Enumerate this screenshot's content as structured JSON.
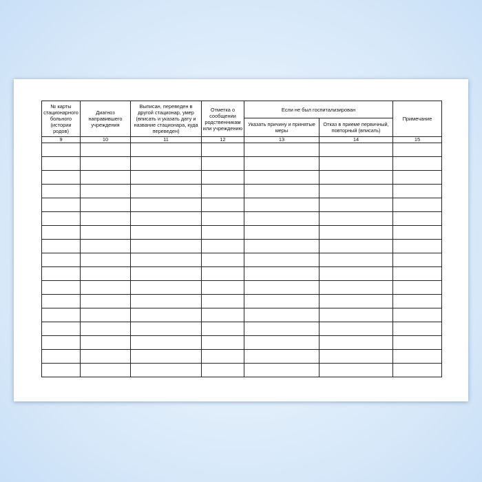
{
  "table": {
    "headers": {
      "col9": "№ карты стационарного больного (истории родов)",
      "col10": "Диагноз направившего учреждения",
      "col11": "Выписан, переведен в другой стационар, умер (вписать и указать дату и название стационара, куда переведен)",
      "col12": "Отметка о сообщении родственникам или учреждению",
      "group": "Если не был госпитализирован",
      "col13": "Указать причину и принятые меры",
      "col14": "Отказ в приеме первичный, повторный (вписать)",
      "col15": "Примечание"
    },
    "numbers": [
      "9",
      "10",
      "11",
      "12",
      "13",
      "14",
      "15"
    ],
    "empty_rows": 17
  }
}
